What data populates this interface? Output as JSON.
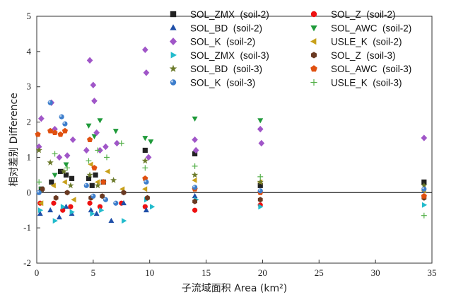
{
  "chart_data": {
    "type": "scatter",
    "xlabel": "子流域面积 Area (km²)",
    "ylabel": "相对差别 Difference",
    "xlim": [
      0,
      35
    ],
    "ylim": [
      -2,
      5
    ],
    "x_ticks": [
      "0",
      "5",
      "10",
      "15",
      "20",
      "25",
      "30",
      "35"
    ],
    "y_ticks": [
      "-2",
      "-1",
      "0",
      "1",
      "2",
      "3",
      "4",
      "5"
    ],
    "grid": false,
    "legend_placement": "top-right",
    "series": [
      {
        "name": "SOL_ZMX  (soil-2)",
        "color": "#222222",
        "marker": "square",
        "points": [
          [
            0.4,
            0.1
          ],
          [
            1.3,
            0.3
          ],
          [
            2.1,
            0.6
          ],
          [
            2.6,
            0.5
          ],
          [
            3.1,
            0.4
          ],
          [
            4.6,
            0.4
          ],
          [
            4.9,
            0.2
          ],
          [
            5.2,
            0.5
          ],
          [
            5.9,
            0.3
          ],
          [
            9.6,
            1.2
          ],
          [
            14.0,
            1.1
          ],
          [
            19.8,
            0.2
          ],
          [
            34.3,
            0.3
          ]
        ]
      },
      {
        "name": "SOL_Z  (soil-2)",
        "color": "#ee1111",
        "marker": "circle",
        "points": [
          [
            0.3,
            -0.3
          ],
          [
            1.5,
            -0.3
          ],
          [
            2.3,
            -0.5
          ],
          [
            3.0,
            -0.4
          ],
          [
            4.7,
            -0.3
          ],
          [
            5.6,
            -0.4
          ],
          [
            7.5,
            -0.3
          ],
          [
            9.6,
            -0.4
          ],
          [
            14.0,
            -0.5
          ],
          [
            19.8,
            -0.35
          ],
          [
            34.3,
            -0.1
          ]
        ]
      },
      {
        "name": "SOL_BD  (soil-2)",
        "color": "#1f4fa8",
        "marker": "triangle-up",
        "points": [
          [
            0.3,
            -0.6
          ],
          [
            1.2,
            -0.5
          ],
          [
            2.0,
            -0.7
          ],
          [
            2.6,
            -0.4
          ],
          [
            3.1,
            -0.6
          ],
          [
            4.8,
            -0.5
          ],
          [
            5.3,
            -0.6
          ],
          [
            6.6,
            -0.8
          ],
          [
            7.7,
            -0.3
          ],
          [
            9.7,
            -0.5
          ],
          [
            14.0,
            -0.1
          ],
          [
            34.3,
            0.05
          ]
        ]
      },
      {
        "name": "SOL_AWC  (soil-2)",
        "color": "#1f9a3a",
        "marker": "triangle-down",
        "points": [
          [
            0.4,
            0.1
          ],
          [
            1.6,
            0.5
          ],
          [
            2.6,
            0.8
          ],
          [
            4.6,
            1.9
          ],
          [
            5.1,
            1.6
          ],
          [
            5.6,
            2.05
          ],
          [
            7.0,
            1.75
          ],
          [
            9.6,
            1.55
          ],
          [
            10.1,
            1.45
          ],
          [
            14.0,
            2.1
          ],
          [
            19.8,
            2.05
          ]
        ]
      },
      {
        "name": "SOL_K  (soil-2)",
        "color": "#a056c8",
        "marker": "diamond",
        "points": [
          [
            0.2,
            1.3
          ],
          [
            0.4,
            2.1
          ],
          [
            1.3,
            2.55
          ],
          [
            1.6,
            1.8
          ],
          [
            2.0,
            1.0
          ],
          [
            2.7,
            1.05
          ],
          [
            3.2,
            1.5
          ],
          [
            4.4,
            1.2
          ],
          [
            4.7,
            3.75
          ],
          [
            5.0,
            3.05
          ],
          [
            5.1,
            2.6
          ],
          [
            5.3,
            1.7
          ],
          [
            5.6,
            1.2
          ],
          [
            6.1,
            1.3
          ],
          [
            7.1,
            1.4
          ],
          [
            9.6,
            4.05
          ],
          [
            9.7,
            3.4
          ],
          [
            9.9,
            1.0
          ],
          [
            14.0,
            1.5
          ],
          [
            14.1,
            1.2
          ],
          [
            19.8,
            1.8
          ],
          [
            19.9,
            1.4
          ],
          [
            34.3,
            1.55
          ]
        ]
      },
      {
        "name": "USLE_K  (soil-2)",
        "color": "#c8a01a",
        "marker": "triangle-left",
        "points": [
          [
            0.4,
            -0.3
          ],
          [
            1.5,
            0.2
          ],
          [
            2.5,
            0.3
          ],
          [
            3.3,
            -0.2
          ],
          [
            4.8,
            0.8
          ],
          [
            5.4,
            0.3
          ],
          [
            6.3,
            0.6
          ],
          [
            7.6,
            0.1
          ],
          [
            9.6,
            0.1
          ],
          [
            14.0,
            0.35
          ],
          [
            19.8,
            0.3
          ],
          [
            34.3,
            0.05
          ]
        ]
      },
      {
        "name": "SOL_ZMX  (soil-3)",
        "color": "#22bbcc",
        "marker": "triangle-right",
        "points": [
          [
            0.3,
            -0.5
          ],
          [
            1.6,
            -0.8
          ],
          [
            2.3,
            -0.4
          ],
          [
            3.1,
            -0.55
          ],
          [
            4.9,
            -0.6
          ],
          [
            5.7,
            -0.5
          ],
          [
            7.7,
            -0.8
          ],
          [
            9.7,
            -0.2
          ],
          [
            10.2,
            -0.4
          ],
          [
            14.1,
            -0.2
          ],
          [
            19.8,
            -0.4
          ],
          [
            34.3,
            -0.35
          ]
        ]
      },
      {
        "name": "SOL_Z  (soil-3)",
        "color": "#6a3a22",
        "marker": "hexagon",
        "points": [
          [
            0.5,
            0.1
          ],
          [
            1.7,
            -0.15
          ],
          [
            2.7,
            0.0
          ],
          [
            4.8,
            -0.15
          ],
          [
            5.8,
            -0.1
          ],
          [
            7.7,
            0.0
          ],
          [
            9.8,
            -0.15
          ],
          [
            14.0,
            -0.25
          ],
          [
            19.8,
            -0.2
          ],
          [
            34.3,
            -0.15
          ]
        ]
      },
      {
        "name": "SOL_BD  (soil-3)",
        "color": "#6b7a2a",
        "marker": "star",
        "points": [
          [
            0.2,
            1.2
          ],
          [
            1.2,
            0.85
          ],
          [
            2.4,
            0.6
          ],
          [
            3.0,
            0.2
          ],
          [
            4.7,
            0.5
          ],
          [
            5.4,
            0.2
          ],
          [
            6.8,
            0.35
          ],
          [
            9.6,
            0.9
          ],
          [
            14.0,
            0.5
          ],
          [
            19.8,
            0.3
          ],
          [
            34.3,
            0.2
          ]
        ]
      },
      {
        "name": "SOL_AWC  (soil-3)",
        "color": "#e0500f",
        "marker": "pentagon",
        "points": [
          [
            0.1,
            1.65
          ],
          [
            1.2,
            1.75
          ],
          [
            1.6,
            1.7
          ],
          [
            2.1,
            1.65
          ],
          [
            2.5,
            1.75
          ],
          [
            4.7,
            1.5
          ],
          [
            5.1,
            0.7
          ],
          [
            5.9,
            0.3
          ],
          [
            9.6,
            0.4
          ],
          [
            14.0,
            0.1
          ],
          [
            19.8,
            0.0
          ],
          [
            34.3,
            -0.1
          ]
        ]
      },
      {
        "name": "SOL_K  (soil-3)",
        "color": "#3d7ecc",
        "marker": "sphere",
        "points": [
          [
            0.2,
            0.0
          ],
          [
            1.2,
            2.55
          ],
          [
            2.2,
            2.15
          ],
          [
            2.5,
            1.95
          ],
          [
            4.4,
            0.2
          ],
          [
            5.0,
            -0.1
          ],
          [
            6.1,
            -0.2
          ],
          [
            7.0,
            -0.3
          ],
          [
            9.7,
            0.3
          ],
          [
            14.0,
            0.15
          ],
          [
            19.8,
            0.05
          ],
          [
            34.3,
            0.1
          ]
        ]
      },
      {
        "name": "USLE_K  (soil-3)",
        "color": "#55b04a",
        "marker": "plus",
        "points": [
          [
            0.2,
            0.3
          ],
          [
            1.6,
            1.1
          ],
          [
            2.7,
            0.7
          ],
          [
            4.6,
            0.9
          ],
          [
            5.4,
            1.2
          ],
          [
            6.2,
            1.0
          ],
          [
            7.5,
            1.4
          ],
          [
            9.6,
            0.7
          ],
          [
            14.0,
            0.75
          ],
          [
            19.8,
            0.45
          ],
          [
            34.3,
            -0.65
          ]
        ]
      }
    ]
  }
}
